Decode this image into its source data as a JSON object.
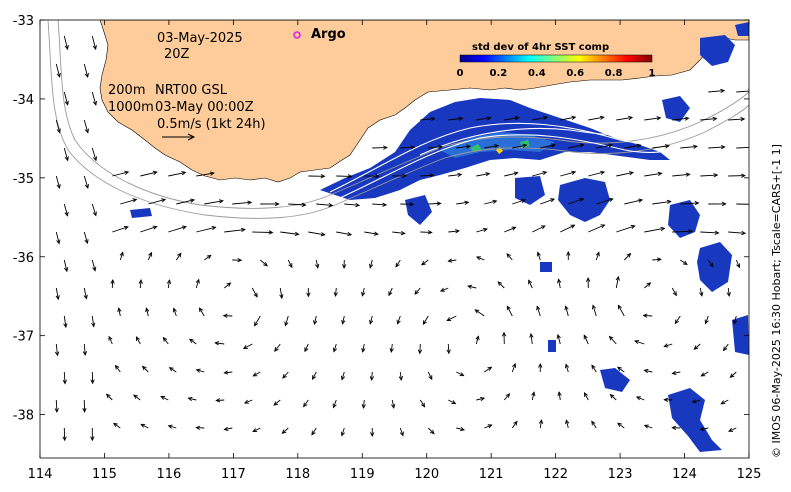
{
  "header": {
    "date": "03-May-2025",
    "time": "20Z",
    "argo_label": "Argo"
  },
  "annotations": {
    "line1_depth": "200m",
    "line1_text": "NRT00 GSL",
    "line2_depth": "1000m",
    "line2_text": "03-May 00:00Z",
    "scale_text": "0.5m/s (1kt 24h)"
  },
  "colorbar": {
    "title": "std dev of 4hr SST comp",
    "ticks": [
      "0",
      "0.2",
      "0.4",
      "0.6",
      "0.8",
      "1"
    ],
    "min": 0,
    "max": 1
  },
  "axes": {
    "x_ticks": [
      "114",
      "115",
      "116",
      "117",
      "118",
      "119",
      "120",
      "121",
      "122",
      "123",
      "124",
      "125"
    ],
    "y_ticks": [
      "-33",
      "-34",
      "-35",
      "-36",
      "-37",
      "-38"
    ],
    "lon_range": [
      114,
      125
    ],
    "lat_range": [
      -38.55,
      -33
    ]
  },
  "credit": "© IMOS 06-May-2025 16:30 Hobart; Tscale=CARS+[-1 1]",
  "colors": {
    "land": "#fdcc9a",
    "ocean": "#ffffff",
    "argo_marker": "#e020e0",
    "sst_patch": "#1030b0",
    "arrow": "#000000"
  }
}
